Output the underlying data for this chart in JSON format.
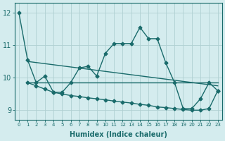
{
  "xlabel": "Humidex (Indice chaleur)",
  "ylabel": "",
  "background_color": "#d4ecee",
  "grid_color": "#b0d0d2",
  "line_color": "#1a6b6b",
  "xlim": [
    -0.5,
    23.5
  ],
  "ylim": [
    8.7,
    12.3
  ],
  "yticks": [
    9,
    10,
    11,
    12
  ],
  "xticks": [
    0,
    1,
    2,
    3,
    4,
    5,
    6,
    7,
    8,
    9,
    10,
    11,
    12,
    13,
    14,
    15,
    16,
    17,
    18,
    19,
    20,
    21,
    22,
    23
  ],
  "series1_x": [
    0,
    1,
    2,
    3,
    4,
    5,
    6,
    7,
    8,
    9,
    10,
    11,
    12,
    13,
    14,
    15,
    16,
    17,
    18,
    19,
    20,
    21,
    22,
    23
  ],
  "series1_y": [
    12.0,
    10.55,
    9.85,
    10.05,
    9.55,
    9.55,
    9.85,
    10.3,
    10.35,
    10.05,
    10.75,
    11.05,
    11.05,
    11.05,
    11.55,
    11.2,
    11.2,
    10.45,
    9.85,
    9.05,
    9.05,
    9.35,
    9.85,
    9.6
  ],
  "series2_x": [
    1,
    2,
    3,
    4,
    5,
    6,
    7,
    8,
    9,
    10,
    11,
    12,
    13,
    14,
    15,
    16,
    17,
    18,
    19,
    20,
    21,
    22,
    23
  ],
  "series2_y": [
    9.85,
    9.85,
    9.85,
    9.85,
    9.85,
    9.85,
    9.85,
    9.85,
    9.85,
    9.85,
    9.85,
    9.85,
    9.85,
    9.85,
    9.85,
    9.85,
    9.85,
    9.85,
    9.85,
    9.85,
    9.85,
    9.85,
    9.85
  ],
  "series3_x": [
    1,
    23
  ],
  "series3_y": [
    10.5,
    9.75
  ],
  "series4_x": [
    1,
    2,
    3,
    4,
    5,
    6,
    7,
    8,
    9,
    10,
    11,
    12,
    13,
    14,
    15,
    16,
    17,
    18,
    19,
    20,
    21,
    22,
    23
  ],
  "series4_y": [
    9.85,
    9.75,
    9.65,
    9.55,
    9.5,
    9.45,
    9.42,
    9.38,
    9.35,
    9.32,
    9.28,
    9.25,
    9.22,
    9.18,
    9.15,
    9.1,
    9.08,
    9.05,
    9.02,
    9.0,
    9.0,
    9.05,
    9.6
  ],
  "marker": "D",
  "marker_size": 2.5,
  "line_width": 1.0
}
